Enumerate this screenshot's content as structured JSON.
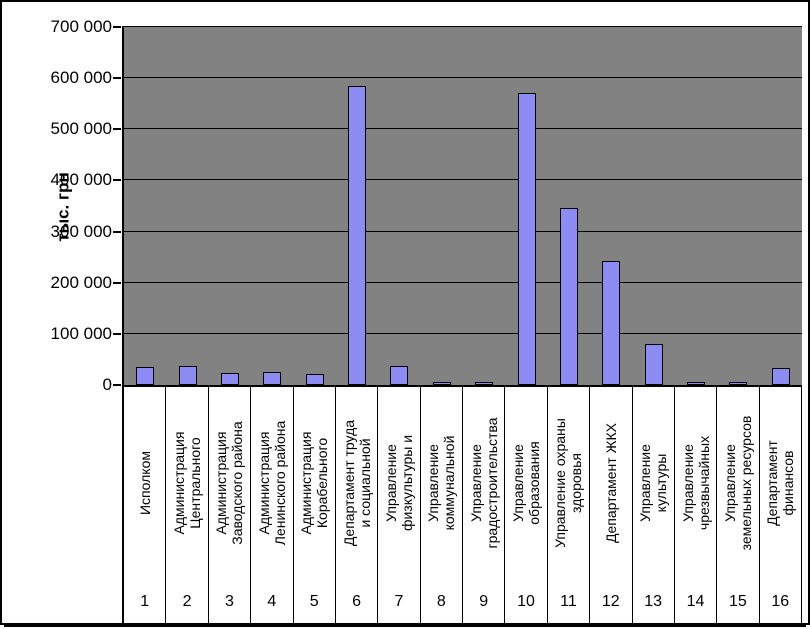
{
  "chart_data": {
    "type": "bar",
    "title": "",
    "xlabel": "",
    "ylabel": "тыс. грн",
    "ylim": [
      0,
      700000
    ],
    "ytick_interval": 100000,
    "ytick_labels": [
      "700 000",
      "600 000",
      "500 000",
      "400 000",
      "300 000",
      "200 000",
      "100 000",
      "0"
    ],
    "grid": true,
    "legend_position": "none",
    "plot_bg_color": "#828282",
    "bar_color": "#8C8CF2",
    "bar_border_color": "#000000",
    "categories": [
      "Исполком",
      "Администрация Центрального",
      "Администрация Заводского района",
      "Администрация Ленинского района",
      "Администрация Корабельного",
      "Департамент труда и социальной",
      "Управление физкультуры и",
      "Управление коммунальной",
      "Управление градостроительства",
      "Управление образования",
      "Управление охраны здоровья",
      "Департамент ЖКХ",
      "Управление культуры",
      "Управление чрезвычайных",
      "Управление земельных ресурсов",
      "Департамент финансов"
    ],
    "category_label_lines": [
      [
        "Исполком"
      ],
      [
        "Администрация",
        "Центрального"
      ],
      [
        "Администрация",
        "Заводского района"
      ],
      [
        "Администрация",
        "Ленинского района"
      ],
      [
        "Администрация",
        "Корабельного"
      ],
      [
        "Департамент труда",
        "и социальной"
      ],
      [
        "Управление",
        "физкультуры и"
      ],
      [
        "Управление",
        "коммунальной"
      ],
      [
        "Управление",
        "градостроительства"
      ],
      [
        "Управление",
        "образования"
      ],
      [
        "Управление охраны",
        "здоровья"
      ],
      [
        "Департамент ЖКХ"
      ],
      [
        "Управление",
        "культуры"
      ],
      [
        "Управление",
        "чрезвычайных"
      ],
      [
        "Управление",
        "земельных ресурсов"
      ],
      [
        "Департамент",
        "финансов"
      ]
    ],
    "category_numbers": [
      "1",
      "2",
      "3",
      "4",
      "5",
      "6",
      "7",
      "8",
      "9",
      "10",
      "11",
      "12",
      "13",
      "14",
      "15",
      "16"
    ],
    "values": [
      36000,
      37000,
      23000,
      26000,
      21000,
      585000,
      38000,
      2500,
      5000,
      570000,
      347000,
      243000,
      80000,
      6000,
      2000,
      33000
    ]
  }
}
